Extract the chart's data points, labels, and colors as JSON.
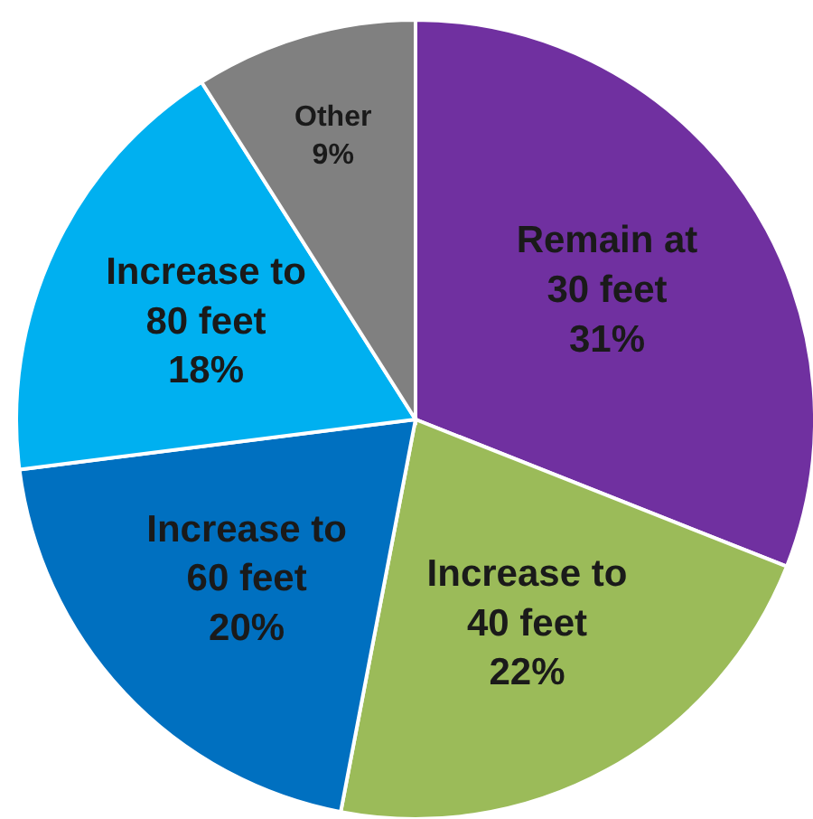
{
  "chart_data": {
    "type": "pie",
    "categories": [
      "Remain at 30 feet",
      "Increase to 40 feet",
      "Increase to 60 feet",
      "Increase to 80 feet",
      "Other"
    ],
    "values": [
      31,
      22,
      20,
      18,
      9
    ],
    "colors": [
      "#7030a0",
      "#9bbb59",
      "#0070c0",
      "#00b0f0",
      "#808080"
    ],
    "value_labels": [
      "31%",
      "22%",
      "20%",
      "18%",
      "9%"
    ],
    "legend": false
  }
}
